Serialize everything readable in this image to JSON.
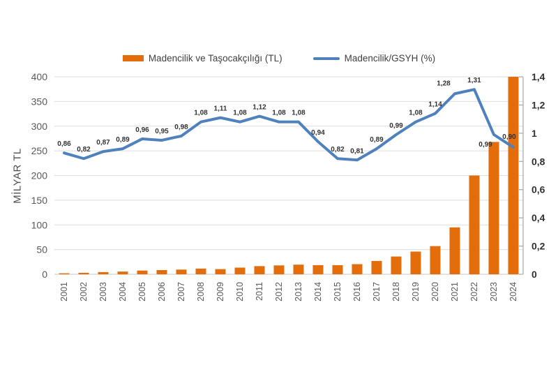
{
  "legend": {
    "bar_label": "Madencilik ve Taşocakçılığı (TL)",
    "line_label": "Madencilik/GSYH (%)"
  },
  "colors": {
    "bar_orange": "#E36D0A",
    "line_blue": "#4F81BD",
    "gridline": "#DDDDDD",
    "zero_line": "#C6C6C6",
    "right_axis_line": "#A6A6A6",
    "tick_text": "#595959",
    "point_label_text": "#333333"
  },
  "chart_data": {
    "type": "bar",
    "subtype": "bar-line-combo-dual-axis",
    "title": "",
    "categories": [
      "2001",
      "2002",
      "2003",
      "2004",
      "2005",
      "2006",
      "2007",
      "2008",
      "2009",
      "2010",
      "2011",
      "2012",
      "2013",
      "2014",
      "2015",
      "2016",
      "2017",
      "2018",
      "2019",
      "2020",
      "2021",
      "2022",
      "2023",
      "2024"
    ],
    "series": [
      {
        "name": "Madencilik ve Taşocakçılığı (TL)",
        "type": "bar",
        "axis": "left",
        "color": "#E36D0A",
        "values": [
          2,
          3,
          4.5,
          5.5,
          7.5,
          8.5,
          9.5,
          11.5,
          10.5,
          13.5,
          16.5,
          18,
          19.5,
          18.5,
          18.5,
          20.5,
          27,
          36,
          46,
          57,
          95,
          200,
          268,
          400
        ]
      },
      {
        "name": "Madencilik/GSYH (%)",
        "type": "line",
        "axis": "right",
        "color": "#4F81BD",
        "values": [
          0.86,
          0.82,
          0.87,
          0.89,
          0.96,
          0.95,
          0.98,
          1.08,
          1.11,
          1.08,
          1.12,
          1.08,
          1.08,
          0.94,
          0.82,
          0.81,
          0.89,
          0.99,
          1.08,
          1.14,
          1.28,
          1.31,
          0.99,
          0.9
        ],
        "point_labels": [
          "0,86",
          "0,82",
          "0,87",
          "0,89",
          "0,96",
          "0,95",
          "0,98",
          "1,08",
          "1,11",
          "1,08",
          "1,12",
          "1,08",
          "1,08",
          "0,94",
          "0,82",
          "0,81",
          "0,89",
          "0,99",
          "1,08",
          "1,14",
          "1,28",
          "1,31",
          "0,99",
          "0,90"
        ]
      }
    ],
    "left_axis": {
      "title": "MİLYAR TL",
      "min": 0,
      "max": 400,
      "step": 50,
      "tick_labels": [
        "0",
        "50",
        "100",
        "150",
        "200",
        "250",
        "300",
        "350",
        "400"
      ]
    },
    "right_axis": {
      "title": "",
      "min": 0,
      "max": 1.4,
      "step": 0.2,
      "tick_labels": [
        "0",
        "0,2",
        "0,4",
        "0,6",
        "0,8",
        "1",
        "1,2",
        "1,4"
      ]
    },
    "grid": "horizontal",
    "legend_position": "top"
  }
}
